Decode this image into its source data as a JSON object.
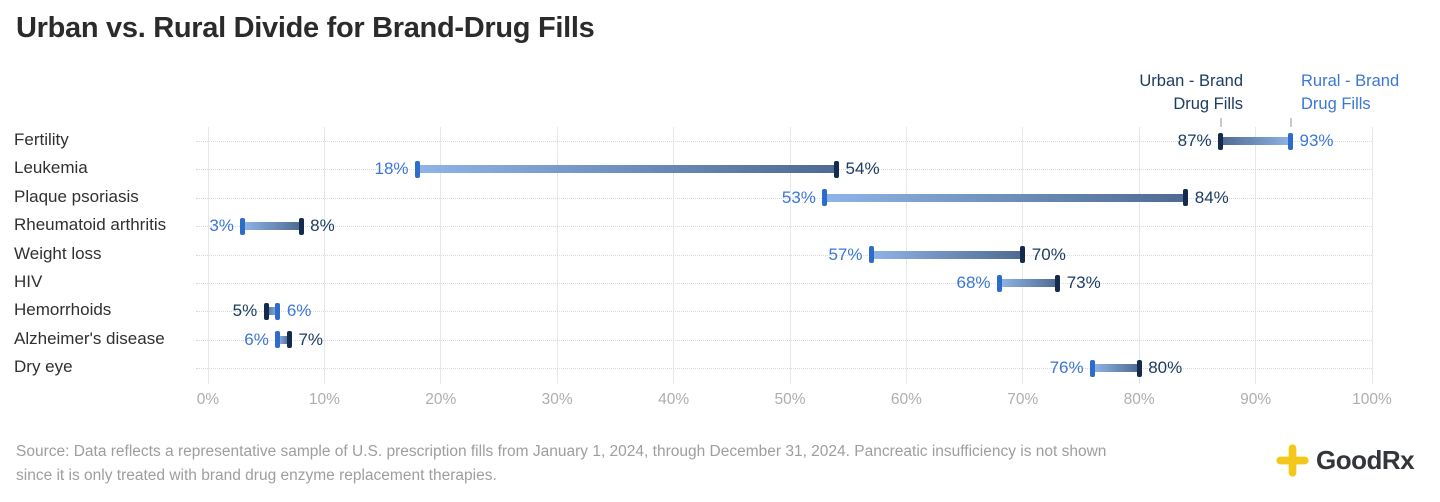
{
  "title": "Urban vs. Rural Divide for Brand-Drug Fills",
  "legend": {
    "urban": {
      "line1": "Urban - Brand",
      "line2": "Drug Fills"
    },
    "rural": {
      "line1": "Rural - Brand",
      "line2": "Drug Fills"
    }
  },
  "chart_data": {
    "type": "dumbbell-range-bar",
    "title": "Urban vs. Rural Divide for Brand-Drug Fills",
    "categories": [
      "Fertility",
      "Leukemia",
      "Plaque psoriasis",
      "Rheumatoid arthritis",
      "Weight loss",
      "HIV",
      "Hemorrhoids",
      "Alzheimer's disease",
      "Dry eye"
    ],
    "series": [
      {
        "name": "Urban - Brand Drug Fills",
        "values": [
          87,
          54,
          84,
          8,
          70,
          73,
          5,
          7,
          80
        ]
      },
      {
        "name": "Rural - Brand Drug Fills",
        "values": [
          93,
          18,
          53,
          3,
          57,
          68,
          6,
          6,
          76
        ]
      }
    ],
    "value_suffix": "%",
    "xlim": [
      0,
      100
    ],
    "x_ticks": [
      "0%",
      "10%",
      "20%",
      "30%",
      "40%",
      "50%",
      "60%",
      "70%",
      "80%",
      "90%",
      "100%"
    ],
    "grid": "vertical solid gridlines every 10%, dotted horizontal guide per row",
    "legend_position": "top-right"
  },
  "colors": {
    "urban_text": "#1d3c61",
    "rural_text": "#3b77d4",
    "urban_tick": "#142b4e",
    "rural_tick": "#2e6ccc",
    "bar_gradient_light": "#8fb4e6",
    "bar_gradient_dark": "#4e6a92",
    "gridline": "#e6e7e9",
    "row_guide": "#d8dbde",
    "axis_text": "#aeaeae",
    "title_text": "#2b2b2b",
    "category_text": "#303030",
    "source_text": "#9e9e9e",
    "logo_yellow": "#f4c81a",
    "logo_text": "#32363a"
  },
  "source": {
    "text": "Source: Data reflects a representative sample of U.S. prescription fills from January 1, 2024, through December 31, 2024. Pancreatic insufficiency is not shown\nsince it is only treated with brand drug enzyme replacement therapies."
  },
  "logo": {
    "text": "GoodRx"
  }
}
